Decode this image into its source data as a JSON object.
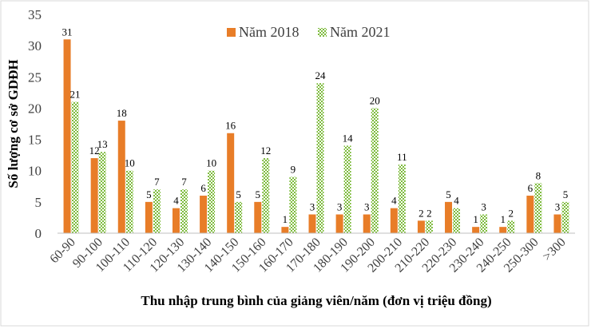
{
  "chart_data": {
    "type": "bar",
    "title": "",
    "xlabel": "Thu nhập trung bình của giảng viên/năm (đơn vị triệu đồng)",
    "ylabel": "Số lượng cơ sở GDĐH",
    "ylim": [
      0,
      35
    ],
    "yticks": [
      0,
      5,
      10,
      15,
      20,
      25,
      30,
      35
    ],
    "grid": false,
    "legend_position": "top-center",
    "categories": [
      "60-90",
      "90-100",
      "100-110",
      "110-120",
      "120-130",
      "130-140",
      "140-150",
      "150-160",
      "160-170",
      "170-180",
      "180-190",
      "190-200",
      "200-210",
      "210-220",
      "220-230",
      "230-240",
      "240-250",
      "250-300",
      ">300"
    ],
    "series": [
      {
        "name": "Năm 2018",
        "color": "#E87D28",
        "pattern": "solid",
        "values": [
          31,
          12,
          18,
          5,
          4,
          6,
          16,
          5,
          1,
          3,
          3,
          3,
          4,
          2,
          5,
          1,
          1,
          6,
          3
        ]
      },
      {
        "name": "Năm 2021",
        "color": "#7DBB3C",
        "pattern": "checkered",
        "values": [
          21,
          13,
          10,
          7,
          7,
          10,
          5,
          12,
          9,
          24,
          14,
          20,
          11,
          2,
          4,
          3,
          2,
          8,
          5
        ]
      }
    ]
  }
}
